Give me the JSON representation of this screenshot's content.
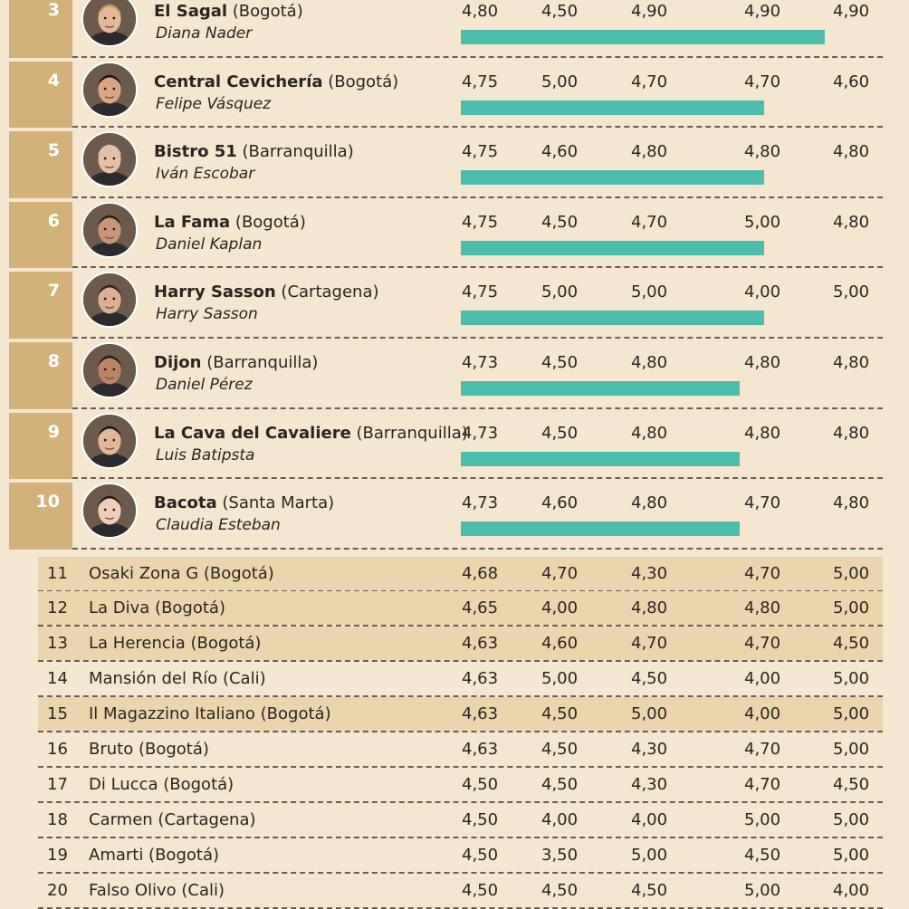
{
  "featured": [
    {
      "rank": "3",
      "name": "El Sagal",
      "city": "(Bogotá)",
      "chef": "Diana Nader",
      "total": "4,80",
      "c1": "4,50",
      "c2": "4,90",
      "c3": "4,90",
      "c4": "4,90",
      "bar_fraction": 1.0
    },
    {
      "rank": "4",
      "name": "Central Cevichería",
      "city": "(Bogotá)",
      "chef": "Felipe Vásquez",
      "total": "4,75",
      "c1": "5,00",
      "c2": "4,70",
      "c3": "4,70",
      "c4": "4,60",
      "bar_fraction": 0.834
    },
    {
      "rank": "5",
      "name": "Bistro 51",
      "city": "(Barranquilla)",
      "chef": "Iván Escobar",
      "total": "4,75",
      "c1": "4,60",
      "c2": "4,80",
      "c3": "4,80",
      "c4": "4,80",
      "bar_fraction": 0.834
    },
    {
      "rank": "6",
      "name": "La Fama",
      "city": "(Bogotá)",
      "chef": "Daniel Kaplan",
      "total": "4,75",
      "c1": "4,50",
      "c2": "4,70",
      "c3": "5,00",
      "c4": "4,80",
      "bar_fraction": 0.834
    },
    {
      "rank": "7",
      "name": "Harry Sasson",
      "city": "(Cartagena)",
      "chef": "Harry Sasson",
      "total": "4,75",
      "c1": "5,00",
      "c2": "5,00",
      "c3": "4,00",
      "c4": "5,00",
      "bar_fraction": 0.834
    },
    {
      "rank": "8",
      "name": "Dijon",
      "city": "(Barranquilla)",
      "chef": "Daniel Pérez",
      "total": "4,73",
      "c1": "4,50",
      "c2": "4,80",
      "c3": "4,80",
      "c4": "4,80",
      "bar_fraction": 0.767
    },
    {
      "rank": "9",
      "name": "La Cava del Cavaliere",
      "city": "(Barranquilla)",
      "chef": "Luis Batipsta",
      "total": "4,73",
      "c1": "4,50",
      "c2": "4,80",
      "c3": "4,80",
      "c4": "4,80",
      "bar_fraction": 0.767
    },
    {
      "rank": "10",
      "name": "Bacota",
      "city": "(Santa Marta)",
      "chef": "Claudia Esteban",
      "total": "4,73",
      "c1": "4,60",
      "c2": "4,80",
      "c3": "4,70",
      "c4": "4,80",
      "bar_fraction": 0.767
    }
  ],
  "others": [
    {
      "rank": "11",
      "name": "Osaki Zona G (Bogotá)",
      "total": "4,68",
      "c1": "4,70",
      "c2": "4,30",
      "c3": "4,70",
      "c4": "5,00",
      "shaded": true
    },
    {
      "rank": "12",
      "name": "La Diva (Bogotá)",
      "total": "4,65",
      "c1": "4,00",
      "c2": "4,80",
      "c3": "4,80",
      "c4": "5,00",
      "shaded": true
    },
    {
      "rank": "13",
      "name": "La Herencia (Bogotá)",
      "total": "4,63",
      "c1": "4,60",
      "c2": "4,70",
      "c3": "4,70",
      "c4": "4,50",
      "shaded": true
    },
    {
      "rank": "14",
      "name": "Mansión del Río (Cali)",
      "total": "4,63",
      "c1": "5,00",
      "c2": "4,50",
      "c3": "4,00",
      "c4": "5,00",
      "shaded": false
    },
    {
      "rank": "15",
      "name": "Il Magazzino Italiano (Bogotá)",
      "total": "4,63",
      "c1": "4,50",
      "c2": "5,00",
      "c3": "4,00",
      "c4": "5,00",
      "shaded": true
    },
    {
      "rank": "16",
      "name": "Bruto (Bogotá)",
      "total": "4,63",
      "c1": "4,50",
      "c2": "4,30",
      "c3": "4,70",
      "c4": "5,00",
      "shaded": false
    },
    {
      "rank": "17",
      "name": "Di Lucca (Bogotá)",
      "total": "4,50",
      "c1": "4,50",
      "c2": "4,30",
      "c3": "4,70",
      "c4": "4,50",
      "shaded": false
    },
    {
      "rank": "18",
      "name": "Carmen (Cartagena)",
      "total": "4,50",
      "c1": "4,00",
      "c2": "4,00",
      "c3": "5,00",
      "c4": "5,00",
      "shaded": false
    },
    {
      "rank": "19",
      "name": "Amarti (Bogotá)",
      "total": "4,50",
      "c1": "3,50",
      "c2": "5,00",
      "c3": "4,50",
      "c4": "5,00",
      "shaded": false
    },
    {
      "rank": "20",
      "name": "Falso Olivo (Cali)",
      "total": "4,50",
      "c1": "4,50",
      "c2": "4,50",
      "c3": "5,00",
      "c4": "4,00",
      "shaded": false
    }
  ],
  "colors": {
    "rank_box": "#d2b27a",
    "bar": "#4cbdad",
    "row_shade": "#ecd5ad",
    "background": "#f4e6cf"
  },
  "icons": {
    "avatar": "chef-portrait-icon"
  }
}
